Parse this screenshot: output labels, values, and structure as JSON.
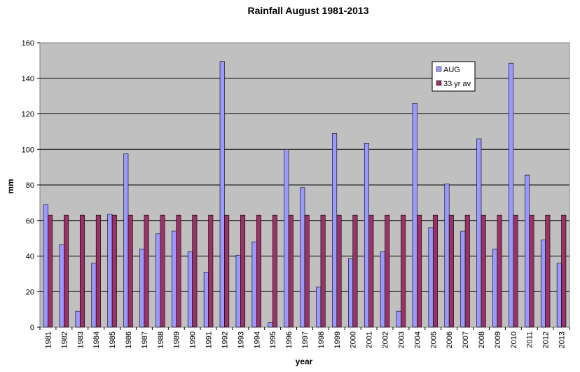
{
  "chart_data": {
    "type": "bar",
    "title": "Rainfall August 1981-2013",
    "xlabel": "year",
    "ylabel": "mm",
    "ylim": [
      0,
      160
    ],
    "yticks": [
      0,
      20,
      40,
      60,
      80,
      100,
      120,
      140,
      160
    ],
    "grid": true,
    "legend_position": "top-right",
    "categories": [
      "1981",
      "1982",
      "1983",
      "1984",
      "1985",
      "1986",
      "1987",
      "1988",
      "1989",
      "1990",
      "1991",
      "1992",
      "1993",
      "1994",
      "1995",
      "1996",
      "1997",
      "1998",
      "1999",
      "2000",
      "2001",
      "2002",
      "2003",
      "2004",
      "2005",
      "2006",
      "2007",
      "2008",
      "2009",
      "2010",
      "2011",
      "2012",
      "2013"
    ],
    "series": [
      {
        "name": "AUG",
        "color": "#9999ff",
        "values": [
          69,
          46.5,
          9,
          36,
          63.5,
          97.5,
          44,
          52.5,
          54,
          42.5,
          31,
          149.5,
          40.5,
          48,
          2.5,
          100,
          78.5,
          22.5,
          109,
          38.5,
          103.5,
          42.5,
          9,
          126,
          56,
          80.5,
          54,
          106,
          44,
          148.5,
          85.5,
          49,
          36
        ]
      },
      {
        "name": "33 yr av",
        "color": "#993366",
        "values": [
          63,
          63,
          63,
          63,
          63,
          63,
          63,
          63,
          63,
          63,
          63,
          63,
          63,
          63,
          63,
          63,
          63,
          63,
          63,
          63,
          63,
          63,
          63,
          63,
          63,
          63,
          63,
          63,
          63,
          63,
          63,
          63,
          63
        ]
      }
    ],
    "plot_background": "#c0c0c0"
  }
}
